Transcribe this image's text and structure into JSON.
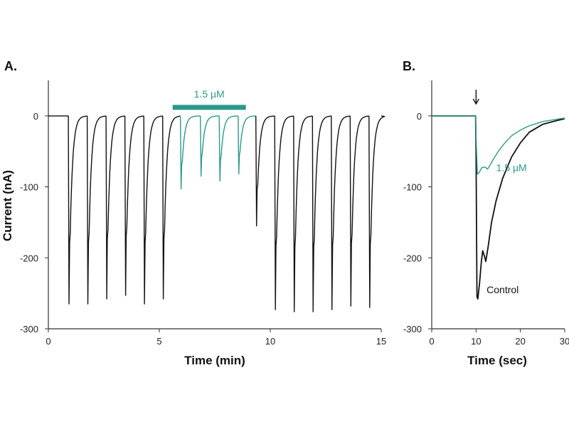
{
  "colors": {
    "control": "#111111",
    "drug": "#2a9a88",
    "axis": "#333333"
  },
  "chart_data": [
    {
      "type": "line",
      "panel_label": "A.",
      "xlabel": "Time (min)",
      "ylabel": "Current (nA)",
      "xlim": [
        0,
        15
      ],
      "ylim": [
        -300,
        50
      ],
      "xticks": [
        0,
        5,
        10,
        15
      ],
      "yticks": [
        0,
        -100,
        -200,
        -300
      ],
      "baseline": 0,
      "drug_bar": {
        "label": "1.5 µM",
        "start": 5.6,
        "end": 8.9,
        "level": 12
      },
      "pulses": [
        {
          "t": 0.9,
          "peak": -265,
          "series": "control"
        },
        {
          "t": 1.75,
          "peak": -265,
          "series": "control"
        },
        {
          "t": 2.6,
          "peak": -258,
          "series": "control"
        },
        {
          "t": 3.45,
          "peak": -253,
          "series": "control"
        },
        {
          "t": 4.3,
          "peak": -265,
          "series": "control"
        },
        {
          "t": 5.15,
          "peak": -258,
          "series": "control"
        },
        {
          "t": 5.95,
          "peak": -103,
          "series": "drug"
        },
        {
          "t": 6.85,
          "peak": -85,
          "series": "drug"
        },
        {
          "t": 7.7,
          "peak": -92,
          "series": "drug"
        },
        {
          "t": 8.55,
          "peak": -82,
          "series": "drug"
        },
        {
          "t": 9.35,
          "peak": -155,
          "series": "control"
        },
        {
          "t": 10.2,
          "peak": -273,
          "series": "control"
        },
        {
          "t": 11.05,
          "peak": -276,
          "series": "control"
        },
        {
          "t": 11.9,
          "peak": -276,
          "series": "control"
        },
        {
          "t": 12.75,
          "peak": -273,
          "series": "control"
        },
        {
          "t": 13.6,
          "peak": -268,
          "series": "control"
        },
        {
          "t": 14.45,
          "peak": -270,
          "series": "control"
        }
      ]
    },
    {
      "type": "line",
      "panel_label": "B.",
      "xlabel": "Time (sec)",
      "ylabel": "",
      "xlim": [
        0,
        30
      ],
      "ylim": [
        -300,
        50
      ],
      "xticks": [
        0,
        10,
        20,
        30
      ],
      "yticks": [
        0,
        -100,
        -200,
        -300
      ],
      "stimulus_arrow": {
        "t": 10
      },
      "series": [
        {
          "name": "Control",
          "color_key": "control",
          "label_pos": [
            16,
            -250
          ],
          "points": [
            [
              0,
              0
            ],
            [
              9.9,
              0
            ],
            [
              10.0,
              -50
            ],
            [
              10.2,
              -255
            ],
            [
              10.4,
              -258
            ],
            [
              10.8,
              -235
            ],
            [
              11.2,
              -205
            ],
            [
              11.5,
              -190
            ],
            [
              11.9,
              -198
            ],
            [
              12.2,
              -205
            ],
            [
              12.7,
              -185
            ],
            [
              13.5,
              -150
            ],
            [
              14.5,
              -120
            ],
            [
              16,
              -88
            ],
            [
              18,
              -58
            ],
            [
              20,
              -38
            ],
            [
              22,
              -23
            ],
            [
              25,
              -12
            ],
            [
              28,
              -7
            ],
            [
              30,
              -4
            ]
          ]
        },
        {
          "name": "1.5 µM",
          "color_key": "drug",
          "label_pos": [
            18,
            -78
          ],
          "points": [
            [
              0,
              0
            ],
            [
              9.9,
              0
            ],
            [
              10.0,
              -30
            ],
            [
              10.3,
              -82
            ],
            [
              10.7,
              -80
            ],
            [
              11.3,
              -73
            ],
            [
              12,
              -72
            ],
            [
              12.6,
              -75
            ],
            [
              13.1,
              -70
            ],
            [
              13.8,
              -62
            ],
            [
              15,
              -50
            ],
            [
              16.5,
              -38
            ],
            [
              18,
              -28
            ],
            [
              20,
              -20
            ],
            [
              22,
              -14
            ],
            [
              25,
              -8
            ],
            [
              28,
              -5
            ],
            [
              30,
              -3
            ]
          ]
        }
      ]
    }
  ]
}
